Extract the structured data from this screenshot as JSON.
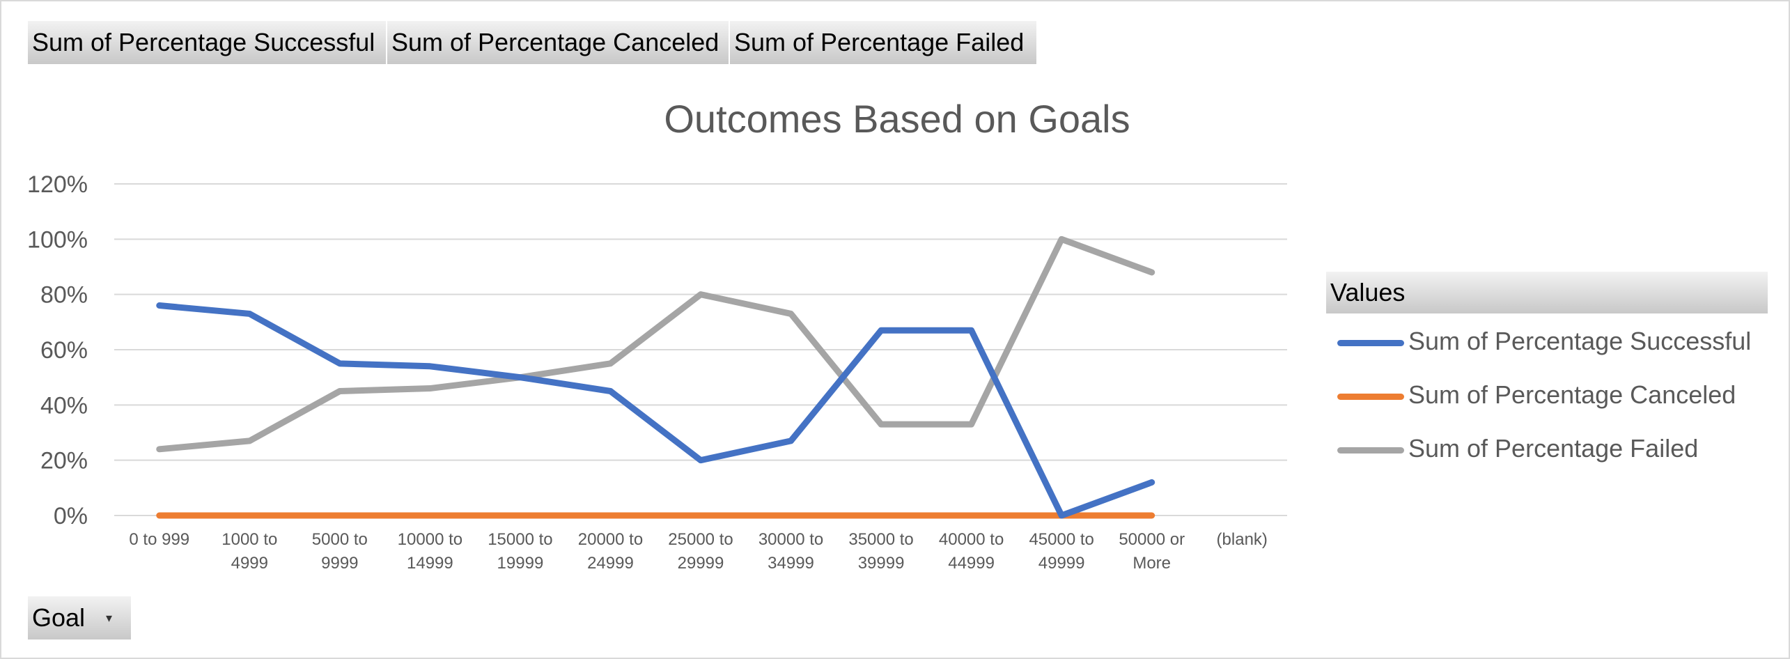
{
  "field_buttons": [
    "Sum of Percentage  Successful",
    "Sum of Percentage  Canceled",
    "Sum of Percentage  Failed"
  ],
  "goal_button": {
    "label": "Goal",
    "arrow": "▾"
  },
  "legend": {
    "title": "Values"
  },
  "chart_data": {
    "type": "line",
    "title": "Outcomes Based on Goals",
    "xlabel": "",
    "ylabel": "",
    "ylim": [
      0,
      120
    ],
    "y_ticks": [
      "0%",
      "20%",
      "40%",
      "60%",
      "80%",
      "100%",
      "120%"
    ],
    "grid": true,
    "legend_position": "right",
    "categories": [
      [
        "0 to 999"
      ],
      [
        "1000 to",
        "4999"
      ],
      [
        "5000 to",
        "9999"
      ],
      [
        "10000 to",
        "14999"
      ],
      [
        "15000 to",
        "19999"
      ],
      [
        "20000 to",
        "24999"
      ],
      [
        "25000 to",
        "29999"
      ],
      [
        "30000 to",
        "34999"
      ],
      [
        "35000 to",
        "39999"
      ],
      [
        "40000 to",
        "44999"
      ],
      [
        "45000 to",
        "49999"
      ],
      [
        "50000 or",
        "More"
      ],
      [
        "(blank)"
      ]
    ],
    "series": [
      {
        "name": "Sum of Percentage Successful",
        "color": "#4472c4",
        "values": [
          76,
          73,
          55,
          54,
          50,
          45,
          20,
          27,
          67,
          67,
          0,
          12,
          null
        ]
      },
      {
        "name": "Sum of Percentage Canceled",
        "color": "#ed7d31",
        "values": [
          0,
          0,
          0,
          0,
          0,
          0,
          0,
          0,
          0,
          0,
          0,
          0,
          null
        ]
      },
      {
        "name": "Sum of Percentage Failed",
        "color": "#a5a5a5",
        "values": [
          24,
          27,
          45,
          46,
          50,
          55,
          80,
          73,
          33,
          33,
          100,
          88,
          null
        ]
      }
    ]
  }
}
